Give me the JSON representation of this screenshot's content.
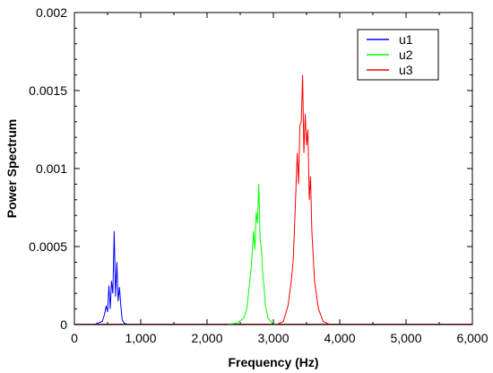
{
  "chart_data": {
    "type": "line",
    "xlabel": "Frequency (Hz)",
    "ylabel": "Power Spectrum",
    "xlim": [
      0,
      6000
    ],
    "ylim": [
      0,
      0.002
    ],
    "x_ticks": [
      0,
      1000,
      2000,
      3000,
      4000,
      5000,
      6000
    ],
    "x_tick_labels": [
      "0",
      "1,000",
      "2,000",
      "3,000",
      "4,000",
      "5,000",
      "6,000"
    ],
    "y_ticks": [
      0,
      0.0005,
      0.001,
      0.0015,
      0.002
    ],
    "y_tick_labels": [
      "0",
      "0.0005",
      "0.001",
      "0.0015",
      "0.002"
    ],
    "grid": false,
    "legend_position": "top-right",
    "series": [
      {
        "name": "u1",
        "color": "#0000ff",
        "x": [
          150,
          300,
          420,
          450,
          480,
          500,
          520,
          540,
          560,
          580,
          600,
          620,
          640,
          660,
          680,
          700,
          720,
          750,
          800,
          900
        ],
        "y": [
          0,
          0,
          2e-05,
          6e-05,
          0.00012,
          8e-05,
          0.00025,
          0.0001,
          0.00028,
          0.0002,
          0.0006,
          0.00018,
          0.0004,
          0.00015,
          0.00024,
          0.00012,
          3e-05,
          1e-05,
          0,
          0
        ]
      },
      {
        "name": "u2",
        "color": "#00ff00",
        "x": [
          2300,
          2450,
          2550,
          2600,
          2630,
          2660,
          2680,
          2700,
          2720,
          2740,
          2760,
          2780,
          2800,
          2820,
          2840,
          2860,
          2880,
          2920,
          2980,
          3050
        ],
        "y": [
          0,
          1e-05,
          4e-05,
          0.0001,
          0.00022,
          0.00034,
          0.00045,
          0.0006,
          0.00048,
          0.00072,
          0.00065,
          0.0009,
          0.00055,
          0.00048,
          0.00032,
          0.00024,
          0.00012,
          4e-05,
          1e-05,
          0
        ]
      },
      {
        "name": "u3",
        "color": "#ff0000",
        "x": [
          3050,
          3150,
          3220,
          3270,
          3300,
          3330,
          3360,
          3380,
          3400,
          3420,
          3440,
          3460,
          3480,
          3500,
          3520,
          3540,
          3560,
          3580,
          3620,
          3680,
          3750,
          3850
        ],
        "y": [
          0,
          2e-05,
          0.00012,
          0.00028,
          0.00042,
          0.00075,
          0.0011,
          0.0009,
          0.00128,
          0.0013,
          0.0016,
          0.0011,
          0.00135,
          0.00115,
          0.00125,
          0.0008,
          0.00095,
          0.0006,
          0.00028,
          0.0001,
          2e-05,
          0
        ]
      }
    ]
  }
}
